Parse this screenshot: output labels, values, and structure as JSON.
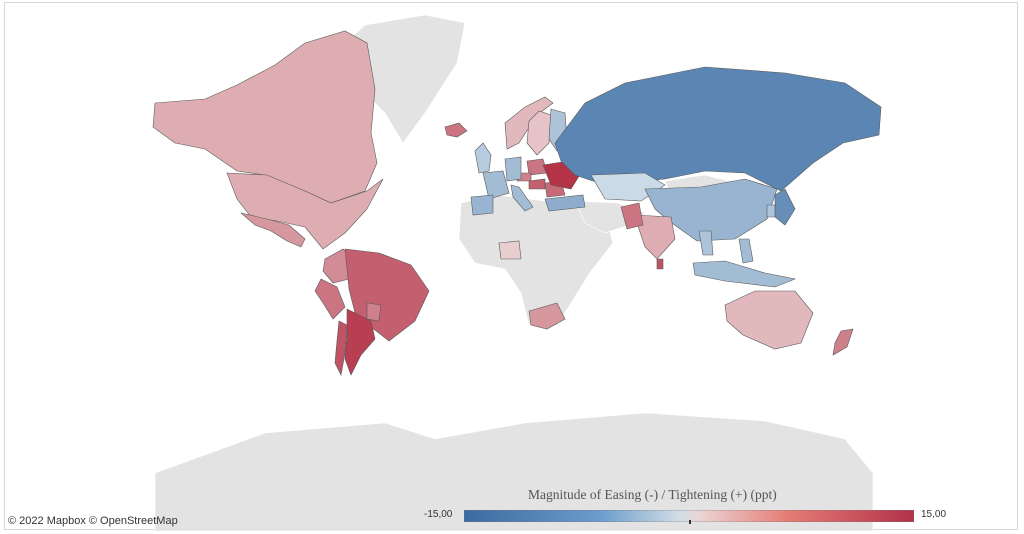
{
  "attribution": "© 2022 Mapbox  © OpenStreetMap",
  "legend": {
    "title": "Magnitude of Easing (-) / Tightening (+) (ppt)",
    "min_label": "-15,00",
    "max_label": "15,00",
    "min": -15,
    "max": 15,
    "colors": {
      "negative": "#3d6fa5",
      "neutral": "#e8e8e8",
      "positive": "#b43347"
    }
  },
  "no_data_color": "#e3e3e3",
  "countries": [
    {
      "name": "Canada",
      "value": 4
    },
    {
      "name": "United States",
      "value": 4
    },
    {
      "name": "Mexico",
      "value": 6
    },
    {
      "name": "Colombia",
      "value": 7
    },
    {
      "name": "Peru",
      "value": 9
    },
    {
      "name": "Brazil",
      "value": 11
    },
    {
      "name": "Chile",
      "value": 12
    },
    {
      "name": "Argentina",
      "value": 14
    },
    {
      "name": "Paraguay",
      "value": 8
    },
    {
      "name": "Iceland",
      "value": 9
    },
    {
      "name": "United Kingdom",
      "value": -3
    },
    {
      "name": "Norway",
      "value": 3
    },
    {
      "name": "Sweden",
      "value": 2
    },
    {
      "name": "Finland",
      "value": -4
    },
    {
      "name": "Poland",
      "value": 9
    },
    {
      "name": "Czechia",
      "value": 8
    },
    {
      "name": "Hungary",
      "value": 11
    },
    {
      "name": "Romania",
      "value": 10
    },
    {
      "name": "Ukraine",
      "value": 15
    },
    {
      "name": "Germany",
      "value": -5
    },
    {
      "name": "France",
      "value": -5
    },
    {
      "name": "Spain",
      "value": -6
    },
    {
      "name": "Italy",
      "value": -5
    },
    {
      "name": "Turkey",
      "value": -7
    },
    {
      "name": "Russia",
      "value": -12
    },
    {
      "name": "Kazakhstan",
      "value": -1
    },
    {
      "name": "China",
      "value": -6
    },
    {
      "name": "Japan",
      "value": -11
    },
    {
      "name": "South Korea",
      "value": -4
    },
    {
      "name": "India",
      "value": 4
    },
    {
      "name": "Pakistan",
      "value": 9
    },
    {
      "name": "Sri Lanka",
      "value": 12
    },
    {
      "name": "Philippines",
      "value": -5
    },
    {
      "name": "Indonesia",
      "value": -5
    },
    {
      "name": "Thailand",
      "value": -4
    },
    {
      "name": "Australia",
      "value": 3
    },
    {
      "name": "New Zealand",
      "value": 8
    },
    {
      "name": "South Africa",
      "value": 6
    },
    {
      "name": "Nigeria",
      "value": 1
    }
  ]
}
